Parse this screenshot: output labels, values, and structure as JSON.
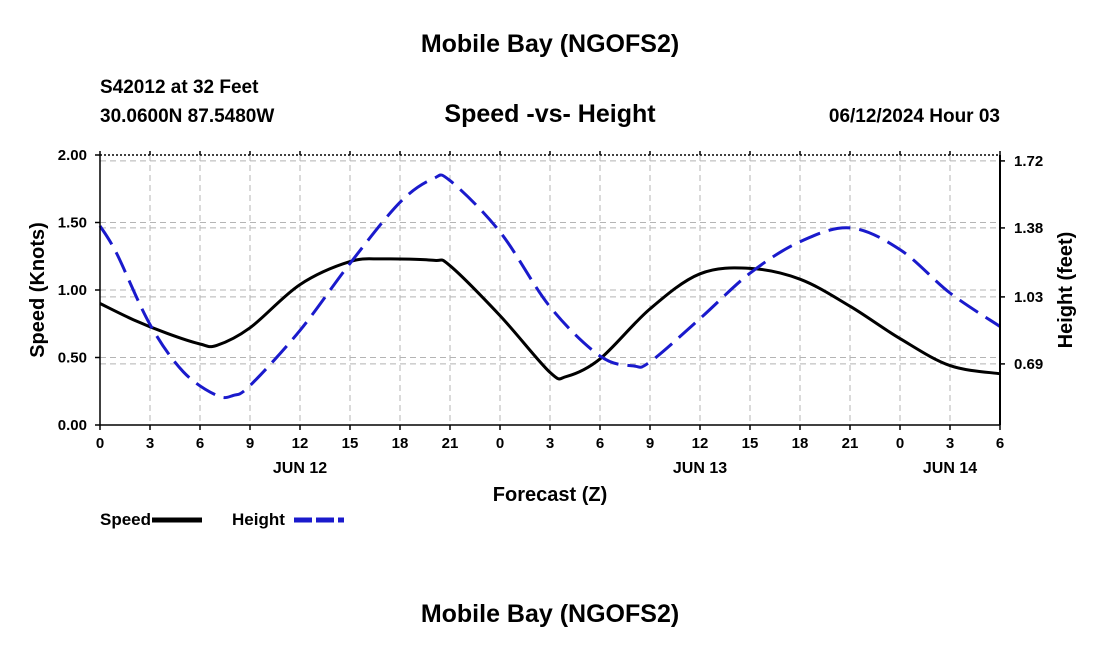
{
  "header": {
    "title": "Mobile Bay (NGOFS2)",
    "station": "S42012 at 32 Feet",
    "coords": "30.0600N  87.5480W",
    "subtitle": "Speed -vs- Height",
    "date": "06/12/2024 Hour 03"
  },
  "footer": {
    "title": "Mobile Bay (NGOFS2)"
  },
  "colors": {
    "speed": "#000000",
    "height": "#1a1acc",
    "grid": "#b4b4b4"
  },
  "chart_data": {
    "type": "line",
    "title": "Speed -vs- Height",
    "xlabel": "Forecast (Z)",
    "ylabel": "Speed (Knots)",
    "y2label": "Height (feet)",
    "x_range": [
      0,
      54
    ],
    "ylim": [
      0,
      2.0
    ],
    "y2lim": [
      0.38,
      1.75
    ],
    "x_ticks": [
      {
        "x": 0,
        "label": "0"
      },
      {
        "x": 3,
        "label": "3"
      },
      {
        "x": 6,
        "label": "6"
      },
      {
        "x": 9,
        "label": "9"
      },
      {
        "x": 12,
        "label": "12"
      },
      {
        "x": 15,
        "label": "15"
      },
      {
        "x": 18,
        "label": "18"
      },
      {
        "x": 21,
        "label": "21"
      },
      {
        "x": 24,
        "label": "0"
      },
      {
        "x": 27,
        "label": "3"
      },
      {
        "x": 30,
        "label": "6"
      },
      {
        "x": 33,
        "label": "9"
      },
      {
        "x": 36,
        "label": "12"
      },
      {
        "x": 39,
        "label": "15"
      },
      {
        "x": 42,
        "label": "18"
      },
      {
        "x": 45,
        "label": "21"
      },
      {
        "x": 48,
        "label": "0"
      },
      {
        "x": 51,
        "label": "3"
      },
      {
        "x": 54,
        "label": "6"
      }
    ],
    "date_labels": [
      {
        "x": 12,
        "label": "JUN 12"
      },
      {
        "x": 36,
        "label": "JUN 13"
      },
      {
        "x": 51,
        "label": "JUN 14"
      }
    ],
    "y_ticks": [
      {
        "value": 0,
        "label": "0.00"
      },
      {
        "value": 0.5,
        "label": "0.50"
      },
      {
        "value": 1.0,
        "label": "1.00"
      },
      {
        "value": 1.5,
        "label": "1.50"
      },
      {
        "value": 2.0,
        "label": "2.00"
      }
    ],
    "y2_ticks": [
      {
        "value": 0.69,
        "label": "0.69"
      },
      {
        "value": 1.03,
        "label": "1.03"
      },
      {
        "value": 1.38,
        "label": "1.38"
      },
      {
        "value": 1.72,
        "label": "1.72"
      }
    ],
    "series": [
      {
        "name": "Speed",
        "axis": "left",
        "style": "solid",
        "x": [
          0,
          2,
          4,
          6,
          7,
          9,
          12,
          15,
          17,
          20,
          21,
          24,
          27,
          28,
          30,
          33,
          36,
          39,
          42,
          45,
          48,
          51,
          54
        ],
        "values": [
          0.9,
          0.78,
          0.68,
          0.6,
          0.59,
          0.72,
          1.04,
          1.21,
          1.23,
          1.22,
          1.18,
          0.81,
          0.39,
          0.36,
          0.49,
          0.86,
          1.12,
          1.16,
          1.08,
          0.88,
          0.64,
          0.44,
          0.38
        ]
      },
      {
        "name": "Height",
        "axis": "right",
        "style": "dashed",
        "x": [
          0,
          1,
          3,
          5,
          7,
          8,
          9,
          12,
          15,
          18,
          20,
          21,
          24,
          27,
          30,
          32,
          33,
          36,
          39,
          42,
          45,
          48,
          51,
          54
        ],
        "values": [
          1.39,
          1.25,
          0.89,
          0.65,
          0.53,
          0.53,
          0.58,
          0.86,
          1.2,
          1.51,
          1.63,
          1.62,
          1.36,
          0.98,
          0.73,
          0.68,
          0.7,
          0.92,
          1.15,
          1.31,
          1.38,
          1.27,
          1.05,
          0.88
        ]
      }
    ],
    "legend": [
      {
        "label": "Speed",
        "style": "solid"
      },
      {
        "label": "Height",
        "style": "dashed"
      }
    ],
    "legend_position": "bottom-left",
    "grid": true
  }
}
